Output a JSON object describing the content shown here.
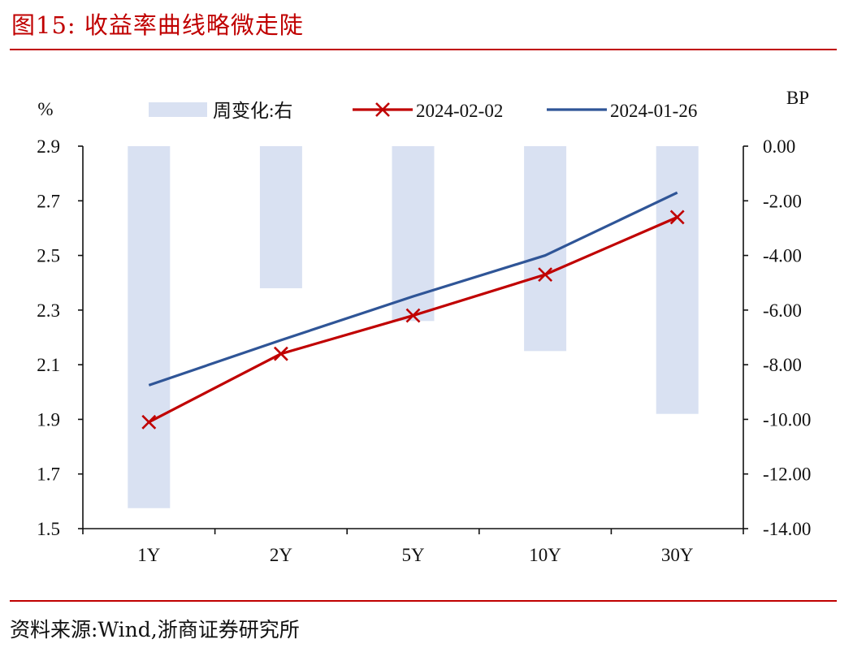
{
  "figure": {
    "title": "图15:  收益率曲线略微走陡",
    "source": "资料来源:Wind,浙商证券研究所"
  },
  "chart_data": {
    "type": "bar+line",
    "categories": [
      "1Y",
      "2Y",
      "5Y",
      "10Y",
      "30Y"
    ],
    "left_axis": {
      "unit": "%",
      "ylim": [
        1.5,
        2.9
      ],
      "ticks": [
        "1.5",
        "1.7",
        "1.9",
        "2.1",
        "2.3",
        "2.5",
        "2.7",
        "2.9"
      ]
    },
    "right_axis": {
      "unit": "BP",
      "ylim": [
        -14,
        0
      ],
      "ticks": [
        "-14.00",
        "-12.00",
        "-10.00",
        "-8.00",
        "-6.00",
        "-4.00",
        "-2.00",
        "0.00"
      ]
    },
    "series": [
      {
        "name": "周变化:右",
        "kind": "bar",
        "axis": "right",
        "color": "#d9e1f2",
        "values": [
          -13.25,
          -5.2,
          -6.4,
          -7.5,
          -9.8
        ]
      },
      {
        "name": "2024-02-02",
        "kind": "line",
        "marker": "x",
        "axis": "left",
        "color": "#c00000",
        "values": [
          1.89,
          2.14,
          2.28,
          2.43,
          2.64
        ]
      },
      {
        "name": "2024-01-26",
        "kind": "line",
        "marker": "none",
        "axis": "left",
        "color": "#2f5597",
        "values": [
          2.025,
          2.19,
          2.35,
          2.5,
          2.73
        ]
      }
    ],
    "legend": {
      "position": "top",
      "labels": [
        "周变化:右",
        "2024-02-02",
        "2024-01-26"
      ]
    },
    "grid": false
  }
}
